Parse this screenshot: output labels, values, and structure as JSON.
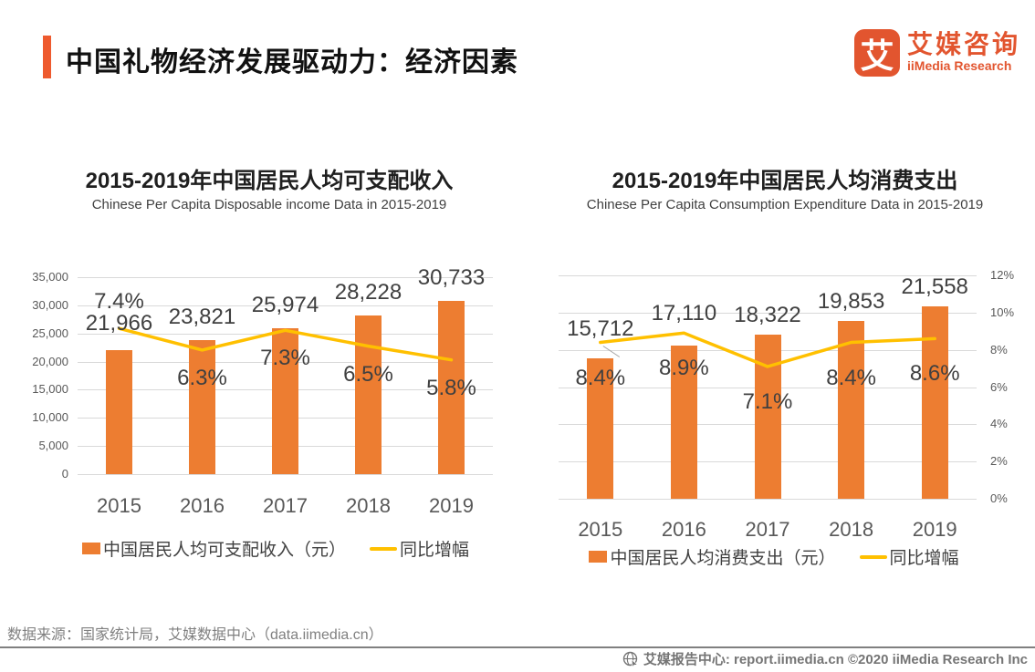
{
  "header": {
    "title": "中国礼物经济发展驱动力：经济因素",
    "logo": {
      "mark": "艾",
      "name_cn": "艾媒咨询",
      "name_en": "iiMedia Research"
    }
  },
  "chart_data": [
    {
      "type": "bar",
      "title": "2015-2019年中国居民人均可支配收入",
      "subtitle": "Chinese Per Capita Disposable income Data in 2015-2019",
      "categories": [
        "2015",
        "2016",
        "2017",
        "2018",
        "2019"
      ],
      "series": [
        {
          "name": "中国居民人均可支配收入（元）",
          "kind": "bar",
          "values": [
            21966,
            23821,
            25974,
            28228,
            30733
          ],
          "labels": [
            "21,966",
            "23,821",
            "25,974",
            "28,228",
            "30,733"
          ]
        },
        {
          "name": "同比增幅",
          "kind": "line",
          "values": [
            7.4,
            6.3,
            7.3,
            6.5,
            5.8
          ],
          "labels": [
            "7.4%",
            "6.3%",
            "7.3%",
            "6.5%",
            "5.8%"
          ]
        }
      ],
      "bar_axis": {
        "range": [
          0,
          35000
        ],
        "visible": true,
        "side": "left",
        "ticks": [
          "35,000",
          "30,000",
          "25,000",
          "20,000",
          "15,000",
          "10,000",
          "5,000",
          "0"
        ]
      },
      "line_axis": {
        "range": [
          0,
          10
        ],
        "visible": false
      },
      "pct_label_side": [
        "above",
        "below",
        "below",
        "below",
        "below"
      ],
      "leader_points": [],
      "grid": true,
      "legend_position": "bottom"
    },
    {
      "type": "bar",
      "title": "2015-2019年中国居民人均消费支出",
      "subtitle": "Chinese Per Capita Consumption Expenditure Data in 2015-2019",
      "categories": [
        "2015",
        "2016",
        "2017",
        "2018",
        "2019"
      ],
      "series": [
        {
          "name": "中国居民人均消费支出（元）",
          "kind": "bar",
          "values": [
            15712,
            17110,
            18322,
            19853,
            21558
          ],
          "labels": [
            "15,712",
            "17,110",
            "18,322",
            "19,853",
            "21,558"
          ]
        },
        {
          "name": "同比增幅",
          "kind": "line",
          "values": [
            8.4,
            8.9,
            7.1,
            8.4,
            8.6
          ],
          "labels": [
            "8.4%",
            "8.9%",
            "7.1%",
            "8.4%",
            "8.6%"
          ]
        }
      ],
      "bar_axis": {
        "range": [
          0,
          25000
        ],
        "visible": false
      },
      "line_axis": {
        "range": [
          0,
          12
        ],
        "visible": true,
        "side": "right",
        "ticks": [
          "12%",
          "10%",
          "8%",
          "6%",
          "4%",
          "2%",
          "0%"
        ]
      },
      "pct_label_side": [
        "below",
        "below",
        "below",
        "below",
        "below"
      ],
      "leader_points": [
        0
      ],
      "grid": true,
      "legend_position": "bottom"
    }
  ],
  "footer": {
    "source": "数据来源：国家统计局，艾媒数据中心（data.iimedia.cn）",
    "credit": "艾媒报告中心:  report.iimedia.cn   ©2020   iiMedia Research  Inc"
  },
  "colors": {
    "accent": "#EE5A2E",
    "bar": "#ED7D31",
    "line": "#FFC000",
    "grid": "#D9D9D9",
    "axis_text": "#595959",
    "label_text": "#404040",
    "footer_text": "#808080",
    "leader": "#A6A6A6"
  }
}
